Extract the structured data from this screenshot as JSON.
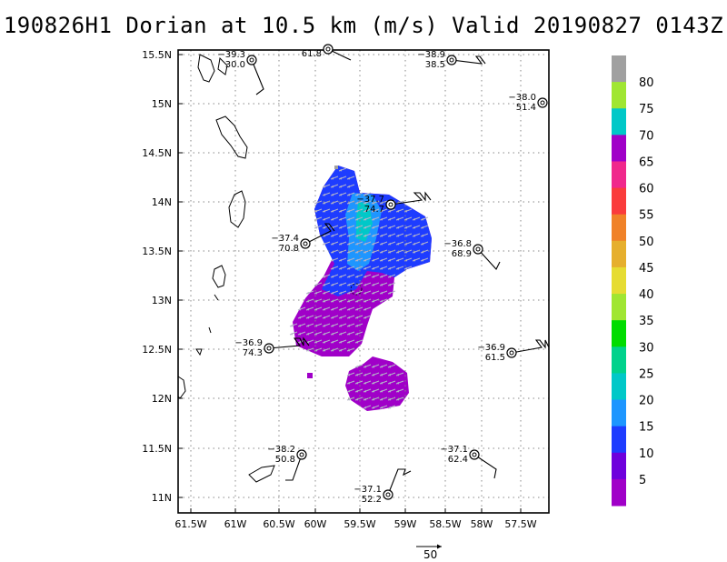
{
  "title": "190826H1 Dorian at 10.5 km (m/s) Valid 20190827 0143Z",
  "lat_labels": [
    "15.5N",
    "15N",
    "14.5N",
    "14N",
    "13.5N",
    "13N",
    "12.5N",
    "12N",
    "11.5N",
    "11N"
  ],
  "lon_labels": [
    "61.5W",
    "61W",
    "60.5W",
    "60W",
    "59.5W",
    "59W",
    "58.5W",
    "58W",
    "57.5W"
  ],
  "colorbar": {
    "labels": [
      "80",
      "75",
      "70",
      "65",
      "60",
      "55",
      "50",
      "45",
      "40",
      "35",
      "30",
      "25",
      "20",
      "15",
      "10",
      "5"
    ],
    "colors": [
      "#a0a0a0",
      "#a0e632",
      "#00c8c8",
      "#a000c8",
      "#f0288c",
      "#fa3c3c",
      "#f08228",
      "#e6af2d",
      "#e6dc32",
      "#a0e632",
      "#00dc00",
      "#00d28c",
      "#00c8c8",
      "#1e96ff",
      "#1e3cff",
      "#6e00dc",
      "#a000c8"
    ]
  },
  "observations": [
    {
      "id": "o1",
      "temp": "−39.3",
      "wind": "30.0"
    },
    {
      "id": "o2",
      "temp": "",
      "wind": "61.8"
    },
    {
      "id": "o3",
      "temp": "−38.9",
      "wind": "38.5"
    },
    {
      "id": "o4",
      "temp": "−38.0",
      "wind": "51.4"
    },
    {
      "id": "o5",
      "temp": "−37.7",
      "wind": "74.7"
    },
    {
      "id": "o6",
      "temp": "−37.4",
      "wind": "70.8"
    },
    {
      "id": "o7",
      "temp": "−36.8",
      "wind": "68.9"
    },
    {
      "id": "o8",
      "temp": "−36.9",
      "wind": "74.3"
    },
    {
      "id": "o9",
      "temp": "−36.9",
      "wind": "61.5"
    },
    {
      "id": "o10",
      "temp": "−38.2",
      "wind": "50.8"
    },
    {
      "id": "o11",
      "temp": "−37.1",
      "wind": "62.4"
    },
    {
      "id": "o12",
      "temp": "−37.1",
      "wind": "52.2"
    }
  ],
  "reference_vector": {
    "label": "50"
  }
}
